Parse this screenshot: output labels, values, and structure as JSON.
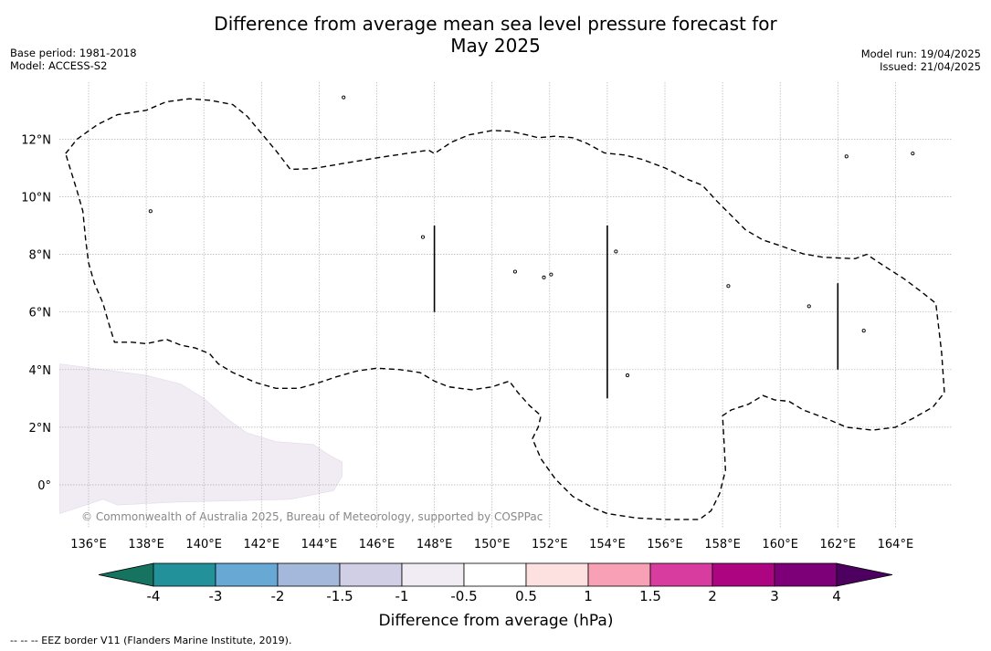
{
  "header": {
    "title_line1": "Difference from average mean sea level pressure forecast for",
    "title_line2": "May 2025",
    "base_period": "Base period: 1981-2018",
    "model": "Model: ACCESS-S2",
    "model_run": "Model run: 19/04/2025",
    "issued": "Issued: 21/04/2025"
  },
  "map": {
    "lon_range": [
      135.0,
      166.0
    ],
    "lat_range": [
      -1.5,
      14.0
    ],
    "lon_ticks": [
      "136°E",
      "138°E",
      "140°E",
      "142°E",
      "144°E",
      "146°E",
      "148°E",
      "150°E",
      "152°E",
      "154°E",
      "156°E",
      "158°E",
      "160°E",
      "162°E",
      "164°E"
    ],
    "lat_ticks": [
      "12°N",
      "10°N",
      "8°N",
      "6°N",
      "4°N",
      "2°N",
      "0°"
    ],
    "lon_tick_values": [
      136,
      138,
      140,
      142,
      144,
      146,
      148,
      150,
      152,
      154,
      156,
      158,
      160,
      162,
      164
    ],
    "lat_tick_values": [
      12,
      10,
      8,
      6,
      4,
      2,
      0
    ],
    "gridlines": true,
    "anomaly_fill_color": "#f1ebf3",
    "anomaly_region": [
      [
        135.0,
        4.2
      ],
      [
        136.5,
        4.0
      ],
      [
        138.0,
        3.8
      ],
      [
        139.2,
        3.5
      ],
      [
        140.0,
        3.0
      ],
      [
        140.8,
        2.3
      ],
      [
        141.5,
        1.8
      ],
      [
        142.5,
        1.5
      ],
      [
        143.8,
        1.4
      ],
      [
        144.4,
        1.0
      ],
      [
        144.8,
        0.8
      ],
      [
        144.8,
        0.3
      ],
      [
        144.5,
        -0.2
      ],
      [
        143.0,
        -0.5
      ],
      [
        141.0,
        -0.55
      ],
      [
        139.0,
        -0.6
      ],
      [
        137.0,
        -0.7
      ],
      [
        136.5,
        -0.5
      ],
      [
        135.6,
        -0.8
      ],
      [
        135.0,
        -1.0
      ]
    ],
    "eez_boundary": [
      [
        135.2,
        11.5
      ],
      [
        135.6,
        12.0
      ],
      [
        136.3,
        12.5
      ],
      [
        137.0,
        12.85
      ],
      [
        138.0,
        13.0
      ],
      [
        138.7,
        13.3
      ],
      [
        139.5,
        13.4
      ],
      [
        140.2,
        13.35
      ],
      [
        141.0,
        13.2
      ],
      [
        141.5,
        12.8
      ],
      [
        142.0,
        12.2
      ],
      [
        142.5,
        11.6
      ],
      [
        143.0,
        10.95
      ],
      [
        143.8,
        10.98
      ],
      [
        144.8,
        11.15
      ],
      [
        146.0,
        11.35
      ],
      [
        147.0,
        11.5
      ],
      [
        147.8,
        11.62
      ],
      [
        148.0,
        11.5
      ],
      [
        148.6,
        11.9
      ],
      [
        149.2,
        12.15
      ],
      [
        150.0,
        12.3
      ],
      [
        150.6,
        12.28
      ],
      [
        151.2,
        12.15
      ],
      [
        151.6,
        12.05
      ],
      [
        152.2,
        12.1
      ],
      [
        152.8,
        12.05
      ],
      [
        153.3,
        11.85
      ],
      [
        153.9,
        11.52
      ],
      [
        154.6,
        11.45
      ],
      [
        155.2,
        11.3
      ],
      [
        156.0,
        11.0
      ],
      [
        156.8,
        10.6
      ],
      [
        157.3,
        10.4
      ],
      [
        157.8,
        9.85
      ],
      [
        158.3,
        9.35
      ],
      [
        158.8,
        8.85
      ],
      [
        159.4,
        8.5
      ],
      [
        160.0,
        8.3
      ],
      [
        160.8,
        8.02
      ],
      [
        161.5,
        7.9
      ],
      [
        162.6,
        7.85
      ],
      [
        163.0,
        8.0
      ],
      [
        163.6,
        7.6
      ],
      [
        164.3,
        7.15
      ],
      [
        164.9,
        6.7
      ],
      [
        165.4,
        6.3
      ],
      [
        165.6,
        4.6
      ],
      [
        165.7,
        3.2
      ],
      [
        165.3,
        2.7
      ],
      [
        164.6,
        2.3
      ],
      [
        164.0,
        2.0
      ],
      [
        163.2,
        1.9
      ],
      [
        162.3,
        2.0
      ],
      [
        161.6,
        2.3
      ],
      [
        160.8,
        2.6
      ],
      [
        160.3,
        2.9
      ],
      [
        159.8,
        2.95
      ],
      [
        159.4,
        3.1
      ],
      [
        158.9,
        2.8
      ],
      [
        158.3,
        2.6
      ],
      [
        158.0,
        2.4
      ],
      [
        158.05,
        1.5
      ],
      [
        158.1,
        0.5
      ],
      [
        157.9,
        -0.3
      ],
      [
        157.6,
        -0.9
      ],
      [
        157.2,
        -1.2
      ],
      [
        156.0,
        -1.2
      ],
      [
        155.0,
        -1.15
      ],
      [
        154.0,
        -1.0
      ],
      [
        153.5,
        -0.8
      ],
      [
        152.8,
        -0.4
      ],
      [
        152.2,
        0.2
      ],
      [
        151.7,
        0.9
      ],
      [
        151.4,
        1.6
      ],
      [
        151.6,
        2.0
      ],
      [
        151.7,
        2.4
      ],
      [
        151.3,
        2.75
      ],
      [
        150.9,
        3.2
      ],
      [
        150.6,
        3.6
      ],
      [
        150.0,
        3.4
      ],
      [
        149.3,
        3.3
      ],
      [
        148.5,
        3.4
      ],
      [
        148.0,
        3.6
      ],
      [
        147.5,
        3.9
      ],
      [
        146.8,
        4.0
      ],
      [
        146.0,
        4.05
      ],
      [
        145.3,
        3.95
      ],
      [
        144.6,
        3.75
      ],
      [
        144.0,
        3.55
      ],
      [
        143.3,
        3.35
      ],
      [
        142.5,
        3.35
      ],
      [
        141.8,
        3.55
      ],
      [
        141.0,
        3.9
      ],
      [
        140.5,
        4.2
      ],
      [
        140.2,
        4.55
      ],
      [
        139.7,
        4.75
      ],
      [
        139.2,
        4.85
      ],
      [
        138.7,
        5.05
      ],
      [
        138.0,
        4.9
      ],
      [
        137.5,
        4.95
      ],
      [
        136.9,
        4.95
      ],
      [
        136.7,
        5.6
      ],
      [
        136.5,
        6.3
      ],
      [
        136.2,
        7.0
      ],
      [
        136.0,
        7.7
      ],
      [
        135.9,
        8.5
      ],
      [
        135.8,
        9.5
      ],
      [
        135.6,
        10.2
      ],
      [
        135.2,
        11.5
      ]
    ],
    "eez_segments": [
      [
        [
          148.0,
          9.0
        ],
        [
          148.0,
          6.0
        ]
      ],
      [
        [
          154.0,
          9.0
        ],
        [
          154.0,
          3.0
        ]
      ],
      [
        [
          162.0,
          7.0
        ],
        [
          162.0,
          4.0
        ]
      ]
    ],
    "islands": [
      [
        144.85,
        13.45
      ],
      [
        138.15,
        9.5
      ],
      [
        147.6,
        8.6
      ],
      [
        150.8,
        7.4
      ],
      [
        151.8,
        7.2
      ],
      [
        152.05,
        7.3
      ],
      [
        154.3,
        8.1
      ],
      [
        158.2,
        6.9
      ],
      [
        161.0,
        6.2
      ],
      [
        162.9,
        5.35
      ],
      [
        154.7,
        3.8
      ],
      [
        162.3,
        11.4
      ],
      [
        164.6,
        11.5
      ]
    ],
    "copyright": "© Commonwealth of Australia 2025, Bureau of Meteorology, supported by COSPPac"
  },
  "colorbar": {
    "title": "Difference from average (hPa)",
    "tick_labels": [
      "-4",
      "-3",
      "-2",
      "-1.5",
      "-1",
      "-0.5",
      "0.5",
      "1",
      "1.5",
      "2",
      "3",
      "4"
    ],
    "low_extend_color": "#16735f",
    "high_extend_color": "#4d0060",
    "colors": [
      "#22919a",
      "#68a8d4",
      "#a3b8db",
      "#d1cfe6",
      "#f1ebf3",
      "#ffffff",
      "#fde0e0",
      "#f8a1b6",
      "#d93c9f",
      "#ad0582",
      "#7e0078"
    ]
  },
  "footnote": {
    "text": "--  --  -- EEZ border V11 (Flanders Marine Institute, 2019)."
  }
}
